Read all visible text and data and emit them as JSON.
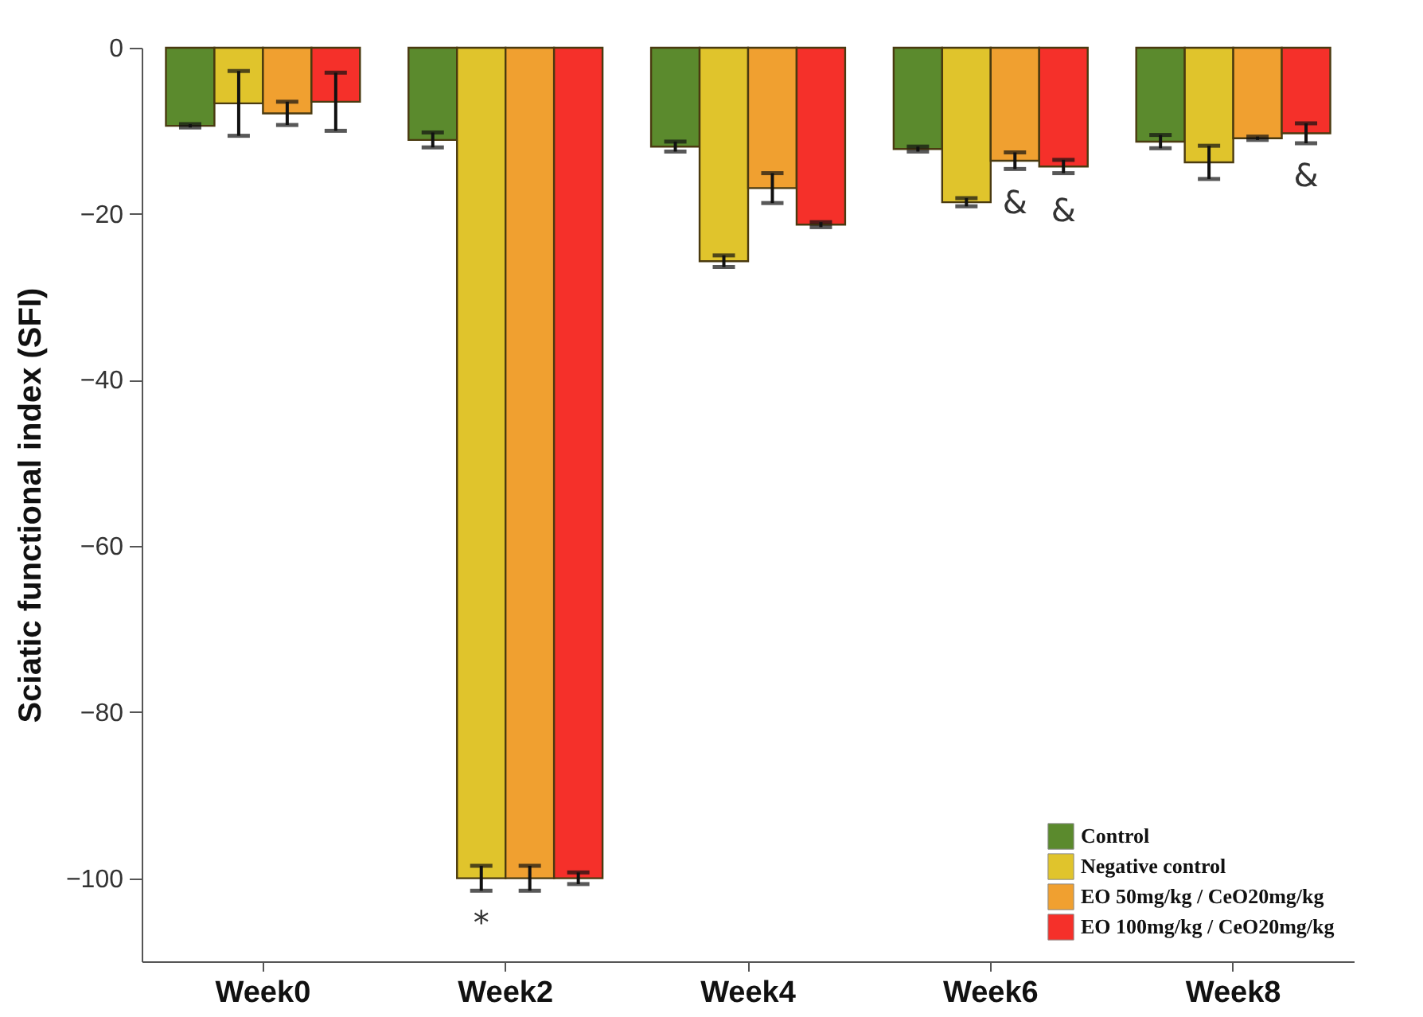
{
  "chart_data": {
    "type": "bar",
    "ylabel": "Sciatic functional index (SFI)",
    "categories": [
      "Week0",
      "Week2",
      "Week4",
      "Week6",
      "Week8"
    ],
    "series": [
      {
        "name": "Control",
        "color": "#5b8a2d",
        "values": [
          -9.4,
          -11.1,
          -11.9,
          -12.2,
          -11.3
        ],
        "errors": [
          0.2,
          0.9,
          0.6,
          0.3,
          0.8
        ]
      },
      {
        "name": "Negative control",
        "color": "#e0c42c",
        "values": [
          -6.7,
          -100,
          -25.7,
          -18.6,
          -13.8
        ],
        "errors": [
          3.9,
          1.5,
          0.7,
          0.5,
          2
        ]
      },
      {
        "name": "EO 50mg/kg / CeO20mg/kg",
        "color": "#f0a030",
        "values": [
          -7.9,
          -100,
          -16.9,
          -13.6,
          -10.9
        ],
        "errors": [
          1.4,
          1.5,
          1.8,
          1,
          0.2
        ]
      },
      {
        "name": "EO 100mg/kg / CeO20mg/kg",
        "color": "#f5302a",
        "values": [
          -6.5,
          -100,
          -21.3,
          -14.3,
          -10.3
        ],
        "errors": [
          3.5,
          0.7,
          0.3,
          0.8,
          1.2
        ]
      }
    ],
    "ylim": [
      -110,
      0
    ],
    "yticks": [
      0,
      -20,
      -40,
      -60,
      -80,
      -100
    ],
    "legend": "bottom right",
    "annotations": [
      "*",
      "&",
      "&",
      "&"
    ]
  }
}
